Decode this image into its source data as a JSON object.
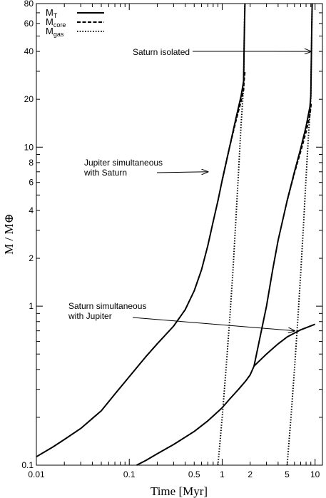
{
  "chart_data": {
    "type": "line",
    "xlabel": "Time [Myr]",
    "ylabel": "M / M⊕",
    "xscale": "log",
    "yscale": "log",
    "xlim": [
      0.01,
      12
    ],
    "ylim": [
      0.1,
      80
    ],
    "grid": false,
    "legend_position": "top-left",
    "x_ticks": [
      {
        "value": 0.01,
        "label": "0.01"
      },
      {
        "value": 0.1,
        "label": "0.1"
      },
      {
        "value": 0.5,
        "label": "0.5"
      },
      {
        "value": 1,
        "label": "1"
      },
      {
        "value": 2,
        "label": "2"
      },
      {
        "value": 5,
        "label": "5"
      },
      {
        "value": 10,
        "label": "10"
      }
    ],
    "y_ticks": [
      {
        "value": 0.1,
        "label": "0.1"
      },
      {
        "value": 1,
        "label": "1"
      },
      {
        "value": 2,
        "label": "2"
      },
      {
        "value": 4,
        "label": "4"
      },
      {
        "value": 6,
        "label": "6"
      },
      {
        "value": 8,
        "label": "8"
      },
      {
        "value": 10,
        "label": "10"
      },
      {
        "value": 20,
        "label": "20"
      },
      {
        "value": 40,
        "label": "40"
      },
      {
        "value": 60,
        "label": "60"
      },
      {
        "value": 80,
        "label": "80"
      }
    ],
    "legend": [
      {
        "main": "M",
        "sub": "T",
        "style": "solid"
      },
      {
        "main": "M",
        "sub": "core",
        "style": "dashed"
      },
      {
        "main": "M",
        "sub": "gas",
        "style": "dotted"
      }
    ],
    "series": [
      {
        "style": "solid",
        "points": [
          [
            0.01,
            0.113
          ],
          [
            0.015,
            0.13
          ],
          [
            0.02,
            0.145
          ],
          [
            0.03,
            0.17
          ],
          [
            0.05,
            0.22
          ],
          [
            0.07,
            0.28
          ],
          [
            0.1,
            0.36
          ],
          [
            0.15,
            0.48
          ],
          [
            0.2,
            0.58
          ],
          [
            0.3,
            0.75
          ],
          [
            0.4,
            0.95
          ],
          [
            0.5,
            1.25
          ],
          [
            0.6,
            1.7
          ],
          [
            0.7,
            2.4
          ],
          [
            0.8,
            3.4
          ],
          [
            0.9,
            4.6
          ],
          [
            1.0,
            6.2
          ],
          [
            1.2,
            10
          ],
          [
            1.4,
            15
          ],
          [
            1.6,
            21
          ],
          [
            1.7,
            26
          ],
          [
            1.72,
            40
          ],
          [
            1.74,
            60
          ],
          [
            1.76,
            80
          ]
        ]
      },
      {
        "style": "dashed",
        "points": [
          [
            1.0,
            6.2
          ],
          [
            1.2,
            10
          ],
          [
            1.4,
            14.5
          ],
          [
            1.6,
            19.5
          ],
          [
            1.7,
            23
          ],
          [
            1.72,
            26
          ],
          [
            1.74,
            28
          ],
          [
            1.76,
            30
          ]
        ]
      },
      {
        "style": "dotted",
        "points": [
          [
            0.9,
            0.1
          ],
          [
            1.0,
            0.2
          ],
          [
            1.1,
            0.4
          ],
          [
            1.2,
            0.8
          ],
          [
            1.3,
            1.6
          ],
          [
            1.4,
            3.4
          ],
          [
            1.5,
            7
          ],
          [
            1.6,
            14
          ],
          [
            1.7,
            24
          ],
          [
            1.75,
            80
          ]
        ]
      },
      {
        "style": "solid",
        "points": [
          [
            0.12,
            0.1
          ],
          [
            0.15,
            0.107
          ],
          [
            0.2,
            0.118
          ],
          [
            0.3,
            0.135
          ],
          [
            0.5,
            0.163
          ],
          [
            0.7,
            0.19
          ],
          [
            0.9,
            0.217
          ],
          [
            1.0,
            0.23
          ],
          [
            1.2,
            0.26
          ],
          [
            1.5,
            0.3
          ],
          [
            1.8,
            0.34
          ],
          [
            2.0,
            0.37
          ],
          [
            2.2,
            0.42
          ],
          [
            3.0,
            0.5
          ],
          [
            4.0,
            0.58
          ],
          [
            5.0,
            0.64
          ],
          [
            7.0,
            0.71
          ],
          [
            10.0,
            0.77
          ]
        ]
      },
      {
        "style": "solid",
        "points": [
          [
            2.2,
            0.42
          ],
          [
            2.5,
            0.6
          ],
          [
            3.0,
            1.0
          ],
          [
            3.5,
            1.7
          ],
          [
            4.0,
            2.6
          ],
          [
            5.0,
            4.6
          ],
          [
            6.0,
            7.0
          ],
          [
            7.0,
            9.8
          ],
          [
            8.0,
            13.5
          ],
          [
            8.8,
            18
          ],
          [
            9.0,
            21
          ],
          [
            9.1,
            35
          ],
          [
            9.2,
            55
          ],
          [
            9.3,
            80
          ]
        ]
      },
      {
        "style": "dashed",
        "points": [
          [
            5.0,
            4.6
          ],
          [
            6.0,
            6.9
          ],
          [
            7.0,
            9.4
          ],
          [
            8.0,
            12.5
          ],
          [
            8.8,
            16
          ],
          [
            9.1,
            19
          ]
        ]
      },
      {
        "style": "dotted",
        "points": [
          [
            5.0,
            0.1
          ],
          [
            5.5,
            0.2
          ],
          [
            6.0,
            0.4
          ],
          [
            6.5,
            0.8
          ],
          [
            7.0,
            1.6
          ],
          [
            7.5,
            3.2
          ],
          [
            8.0,
            6.5
          ],
          [
            8.5,
            12
          ],
          [
            9.0,
            20
          ],
          [
            9.3,
            80
          ]
        ]
      }
    ],
    "annotations": [
      {
        "lines": [
          "Saturn isolated"
        ],
        "arrow_to": [
          9.0,
          40
        ]
      },
      {
        "lines": [
          "Jupiter simultaneous",
          "with Saturn"
        ],
        "arrow_to": [
          0.7,
          7
        ]
      },
      {
        "lines": [
          "Saturn simultaneous",
          "with Jupiter"
        ],
        "arrow_to": [
          6.0,
          0.7
        ]
      }
    ]
  }
}
